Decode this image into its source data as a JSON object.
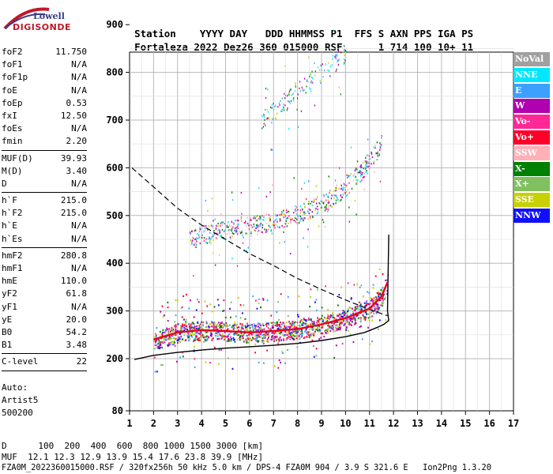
{
  "logo": {
    "line1": "Lowell",
    "line2": "DIGISONDE"
  },
  "header": {
    "row1": [
      "Station",
      "YYYY",
      "DAY",
      "DDD",
      "HHMMSS",
      "P1",
      "FFS",
      "S",
      "AXN",
      "PPS",
      "IGA",
      "PS"
    ],
    "row2": [
      "Fortaleza",
      "2022",
      "Dez26",
      "360",
      "015000",
      "RSF",
      "",
      "1",
      "714",
      "100",
      "10+",
      "11"
    ]
  },
  "params": [
    {
      "k": "foF2",
      "v": "11.750"
    },
    {
      "k": "foF1",
      "v": "N/A"
    },
    {
      "k": "foF1p",
      "v": "N/A"
    },
    {
      "k": "foE",
      "v": "N/A"
    },
    {
      "k": "foEp",
      "v": "0.53"
    },
    {
      "k": "fxI",
      "v": "12.50"
    },
    {
      "k": "foEs",
      "v": "N/A"
    },
    {
      "k": "fmin",
      "v": "2.20"
    },
    {
      "sep": true
    },
    {
      "k": "MUF(D)",
      "v": "39.93"
    },
    {
      "k": "M(D)",
      "v": "3.40"
    },
    {
      "k": "D",
      "v": "N/A"
    },
    {
      "sep": true
    },
    {
      "k": "h`F",
      "v": "215.0"
    },
    {
      "k": "h`F2",
      "v": "215.0"
    },
    {
      "k": "h`E",
      "v": "N/A"
    },
    {
      "k": "h`Es",
      "v": "N/A"
    },
    {
      "sep": true
    },
    {
      "k": "hmF2",
      "v": "280.8"
    },
    {
      "k": "hmF1",
      "v": "N/A"
    },
    {
      "k": "hmE",
      "v": "110.0"
    },
    {
      "k": "yF2",
      "v": "61.8"
    },
    {
      "k": "yF1",
      "v": "N/A"
    },
    {
      "k": "yE",
      "v": "20.0"
    },
    {
      "k": "B0",
      "v": "54.2"
    },
    {
      "k": "B1",
      "v": "3.48"
    },
    {
      "sep": true
    },
    {
      "k": "C-level",
      "v": "22"
    },
    {
      "sep": true
    }
  ],
  "auto": {
    "line1": "Auto:",
    "line2": "Artist5",
    "line3": "500200"
  },
  "legend": [
    {
      "label": "NoVal",
      "color": "#a0a0a0"
    },
    {
      "label": "NNE",
      "color": "#00e8ff"
    },
    {
      "label": "E",
      "color": "#3ca0ff"
    },
    {
      "label": "W",
      "color": "#b000b0"
    },
    {
      "label": "Vo-",
      "color": "#ff2896"
    },
    {
      "label": "Vo+",
      "color": "#ff0028"
    },
    {
      "label": "SSW",
      "color": "#ffb0b8"
    },
    {
      "label": "X-",
      "color": "#008000"
    },
    {
      "label": "X+",
      "color": "#80c060"
    },
    {
      "label": "SSE",
      "color": "#c8d000"
    },
    {
      "label": "NNW",
      "color": "#1010ff"
    }
  ],
  "footer": {
    "d_row": "D      100  200  400  600  800 1000 1500 3000 [km]",
    "muf_row": "MUF  12.1 12.3 12.9 13.9 15.4 17.6 23.8 39.9 [MHz]",
    "file_row": "FZA0M_2022360015000.RSF / 320fx256h 50 kHz 5.0 km / DPS-4 FZA0M 904 / 3.9 S 321.6 E   Ion2Png 1.3.20"
  },
  "chart_data": {
    "type": "scatter",
    "xlim": [
      1,
      17
    ],
    "ylim": [
      80,
      900
    ],
    "xticks": [
      "1",
      "2",
      "3",
      "4",
      "5",
      "6",
      "7",
      "8",
      "9",
      "10",
      "11",
      "12",
      "13",
      "14",
      "15",
      "16",
      "17"
    ],
    "yticks": [
      "900",
      "800",
      "700",
      "600",
      "500",
      "400",
      "300",
      "200",
      "80"
    ],
    "ytick_values": [
      900,
      800,
      700,
      600,
      500,
      400,
      300,
      200,
      80
    ],
    "grid": true,
    "trace_1x": {
      "x": [
        2.0,
        3.0,
        4.0,
        5.0,
        6.0,
        7.0,
        8.0,
        9.0,
        10.0,
        10.5,
        11.0,
        11.5,
        11.75
      ],
      "y": [
        240,
        255,
        260,
        258,
        255,
        258,
        262,
        272,
        285,
        295,
        305,
        330,
        360
      ]
    },
    "trace_2x": {
      "x": [
        3.5,
        4.0,
        5.0,
        6.0,
        7.0,
        8.0,
        9.0,
        10.0,
        10.5,
        11.0,
        11.5
      ],
      "y": [
        450,
        460,
        470,
        478,
        490,
        505,
        525,
        560,
        585,
        615,
        650
      ]
    },
    "trace_3x": {
      "x": [
        6.5,
        7.0,
        8.0,
        9.0,
        10.0
      ],
      "y": [
        700,
        720,
        760,
        800,
        840
      ]
    },
    "profile_solid": {
      "x": [
        1.2,
        2.0,
        3.0,
        4.0,
        5.0,
        6.0,
        7.0,
        8.0,
        9.0,
        10.0,
        10.8,
        11.3,
        11.6,
        11.8,
        11.75,
        11.8
      ],
      "y": [
        198,
        207,
        213,
        218,
        222,
        225,
        228,
        232,
        238,
        246,
        255,
        265,
        272,
        280,
        300,
        460
      ]
    },
    "profile_dashed": {
      "x": [
        1.1,
        2.0,
        3.0,
        4.0,
        5.0,
        6.0,
        7.0,
        8.0,
        9.0,
        10.0,
        11.0,
        11.75
      ],
      "y": [
        600,
        560,
        515,
        480,
        450,
        420,
        395,
        368,
        345,
        323,
        303,
        290
      ]
    }
  }
}
